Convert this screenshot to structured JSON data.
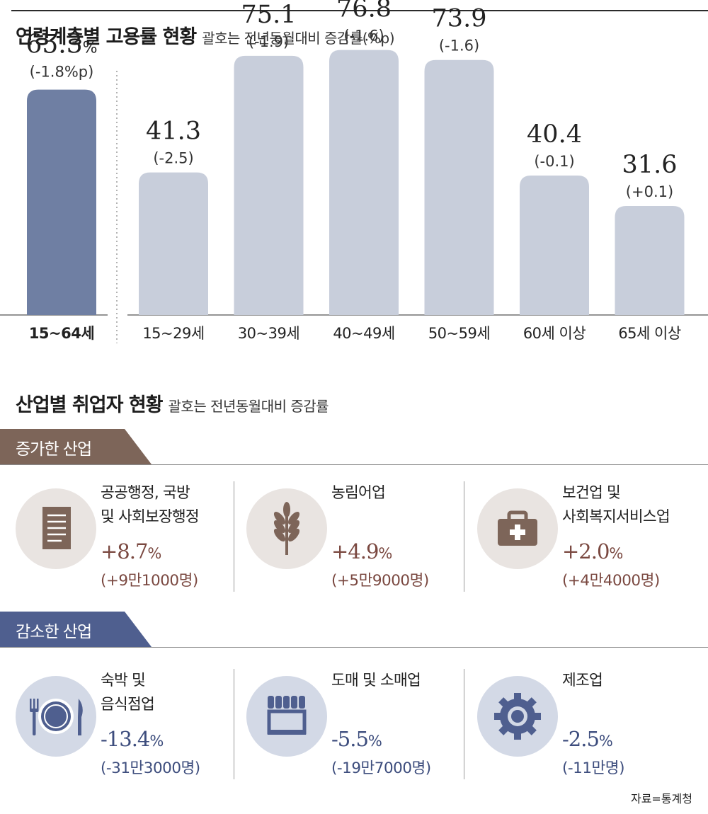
{
  "colors": {
    "overall_bar": "#6f7fa3",
    "age_bar": "#c8cedb",
    "increase_accent": "#7a4840",
    "increase_badge": "#7d6559",
    "increase_circle": "#e9e4e1",
    "increase_icon": "#7d6559",
    "decrease_accent": "#3d4d7d",
    "decrease_badge": "#4f5f8f",
    "decrease_circle": "#d3d9e6",
    "decrease_icon": "#4f5f8f"
  },
  "employment_section": {
    "title": "연령계층별 고용률 현황",
    "subtitle": "괄호는 전년동월대비 증감률(%p)"
  },
  "chart_data": {
    "type": "bar",
    "title": "연령계층별 고용률 현황",
    "subtitle": "괄호는 전년동월대비 증감률(%p)",
    "ylim": [
      0,
      80
    ],
    "grid": false,
    "overall": {
      "category": "15~64세",
      "value": 65.3,
      "value_label": "65.3",
      "unit": "%",
      "change_label": "(-1.8%p)"
    },
    "categories": [
      "15~29세",
      "30~39세",
      "40~49세",
      "50~59세",
      "60세 이상",
      "65세 이상"
    ],
    "values": [
      41.3,
      75.1,
      76.8,
      73.9,
      40.4,
      31.6
    ],
    "value_labels": [
      "41.3",
      "75.1",
      "76.8",
      "73.9",
      "40.4",
      "31.6"
    ],
    "change_labels": [
      "(-2.5)",
      "(-1.9)",
      "(-1.6)",
      "(-1.6)",
      "(-0.1)",
      "(+0.1)"
    ]
  },
  "industry_section": {
    "title": "산업별 취업자 현황",
    "subtitle": "괄호는 전년동월대비 증감률"
  },
  "increase_group": {
    "label": "증가한 산업",
    "items": [
      {
        "name_lines": [
          "공공행정, 국방",
          "및 사회보장행정"
        ],
        "percent": "+8.7",
        "unit": "%",
        "count": "(+9만1000명)",
        "icon": "document-icon"
      },
      {
        "name_lines": [
          "농림어업"
        ],
        "percent": "+4.9",
        "unit": "%",
        "count": "(+5만9000명)",
        "icon": "wheat-icon"
      },
      {
        "name_lines": [
          "보건업 및",
          "사회복지서비스업"
        ],
        "percent": "+2.0",
        "unit": "%",
        "count": "(+4만4000명)",
        "icon": "medical-kit-icon"
      }
    ]
  },
  "decrease_group": {
    "label": "감소한 산업",
    "items": [
      {
        "name_lines": [
          "숙박 및",
          "음식점업"
        ],
        "percent": "-13.4",
        "unit": "%",
        "count": "(-31만3000명)",
        "icon": "dining-icon"
      },
      {
        "name_lines": [
          "도매 및 소매업"
        ],
        "percent": "-5.5",
        "unit": "%",
        "count": "(-19만7000명)",
        "icon": "storefront-icon"
      },
      {
        "name_lines": [
          "제조업"
        ],
        "percent": "-2.5",
        "unit": "%",
        "count": "(-11만명)",
        "icon": "gear-icon"
      }
    ]
  },
  "source": "자료=통계청"
}
